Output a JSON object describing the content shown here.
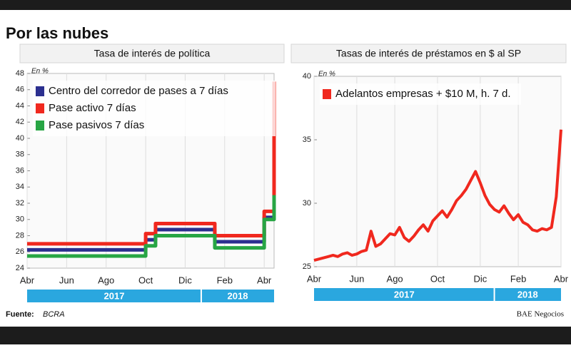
{
  "title": "Por las nubes",
  "source_label": "Fuente:",
  "source": "BCRA",
  "credit": "BAE Negocios",
  "chart_data": [
    {
      "type": "line",
      "step": true,
      "title": "Tasa de interés de política",
      "y_label": "En %",
      "categories": [
        "Abr",
        null,
        null,
        null,
        "Jun",
        null,
        null,
        null,
        "Ago",
        null,
        null,
        null,
        "Oct",
        null,
        null,
        null,
        "Dic",
        null,
        null,
        null,
        "Feb",
        null,
        null,
        null,
        "Abr",
        null
      ],
      "years": [
        "2017",
        "2018"
      ],
      "ylim": [
        24,
        48
      ],
      "yticks": [
        24,
        26,
        28,
        30,
        32,
        34,
        36,
        38,
        40,
        42,
        44,
        46,
        48
      ],
      "series": [
        {
          "name": "Centro del corredor de pases a 7 días",
          "color": "#2b2f8f",
          "values": [
            26.25,
            26.25,
            26.25,
            26.25,
            26.25,
            26.25,
            26.25,
            26.25,
            26.25,
            26.25,
            26.25,
            26.25,
            27.5,
            28.75,
            28.75,
            28.75,
            28.75,
            28.75,
            28.75,
            27.25,
            27.25,
            27.25,
            27.25,
            27.25,
            30.25,
            40
          ]
        },
        {
          "name": "Pase activo 7 días",
          "color": "#f0281e",
          "values": [
            27,
            27,
            27,
            27,
            27,
            27,
            27,
            27,
            27,
            27,
            27,
            27,
            28.25,
            29.5,
            29.5,
            29.5,
            29.5,
            29.5,
            29.5,
            28,
            28,
            28,
            28,
            28,
            31,
            47
          ]
        },
        {
          "name": "Pase pasivos 7 días",
          "color": "#27a544",
          "values": [
            25.5,
            25.5,
            25.5,
            25.5,
            25.5,
            25.5,
            25.5,
            25.5,
            25.5,
            25.5,
            25.5,
            25.5,
            26.75,
            28,
            28,
            28,
            28,
            28,
            28,
            26.5,
            26.5,
            26.5,
            26.5,
            26.5,
            30,
            33
          ]
        }
      ]
    },
    {
      "type": "line",
      "step": false,
      "title": "Tasas de interés de préstamos en $ al SP",
      "y_label": "En %",
      "categories": [
        "Abr",
        null,
        null,
        null,
        null,
        null,
        null,
        null,
        null,
        "Jun",
        null,
        null,
        null,
        null,
        null,
        null,
        null,
        "Ago",
        null,
        null,
        null,
        null,
        null,
        null,
        null,
        null,
        "Oct",
        null,
        null,
        null,
        null,
        null,
        null,
        null,
        null,
        "Dic",
        null,
        null,
        null,
        null,
        null,
        null,
        null,
        "Feb",
        null,
        null,
        null,
        null,
        null,
        null,
        null,
        null,
        "Abr"
      ],
      "years": [
        "2017",
        "2018"
      ],
      "ylim": [
        25,
        40
      ],
      "yticks": [
        25,
        30,
        35,
        40
      ],
      "series": [
        {
          "name": "Adelantos empresas + $10 M, h. 7 d.",
          "color": "#f0281e",
          "values": [
            25.5,
            25.6,
            25.7,
            25.8,
            25.9,
            25.8,
            26,
            26.1,
            25.9,
            26,
            26.2,
            26.3,
            27.8,
            26.6,
            26.8,
            27.2,
            27.6,
            27.5,
            28.1,
            27.3,
            27,
            27.4,
            27.9,
            28.3,
            27.8,
            28.6,
            29,
            29.4,
            28.9,
            29.5,
            30.2,
            30.6,
            31.1,
            31.8,
            32.5,
            31.6,
            30.6,
            29.9,
            29.5,
            29.3,
            29.8,
            29.2,
            28.7,
            29.1,
            28.5,
            28.3,
            27.9,
            27.8,
            28,
            27.9,
            28.1,
            30.5,
            35.8
          ]
        }
      ]
    }
  ]
}
